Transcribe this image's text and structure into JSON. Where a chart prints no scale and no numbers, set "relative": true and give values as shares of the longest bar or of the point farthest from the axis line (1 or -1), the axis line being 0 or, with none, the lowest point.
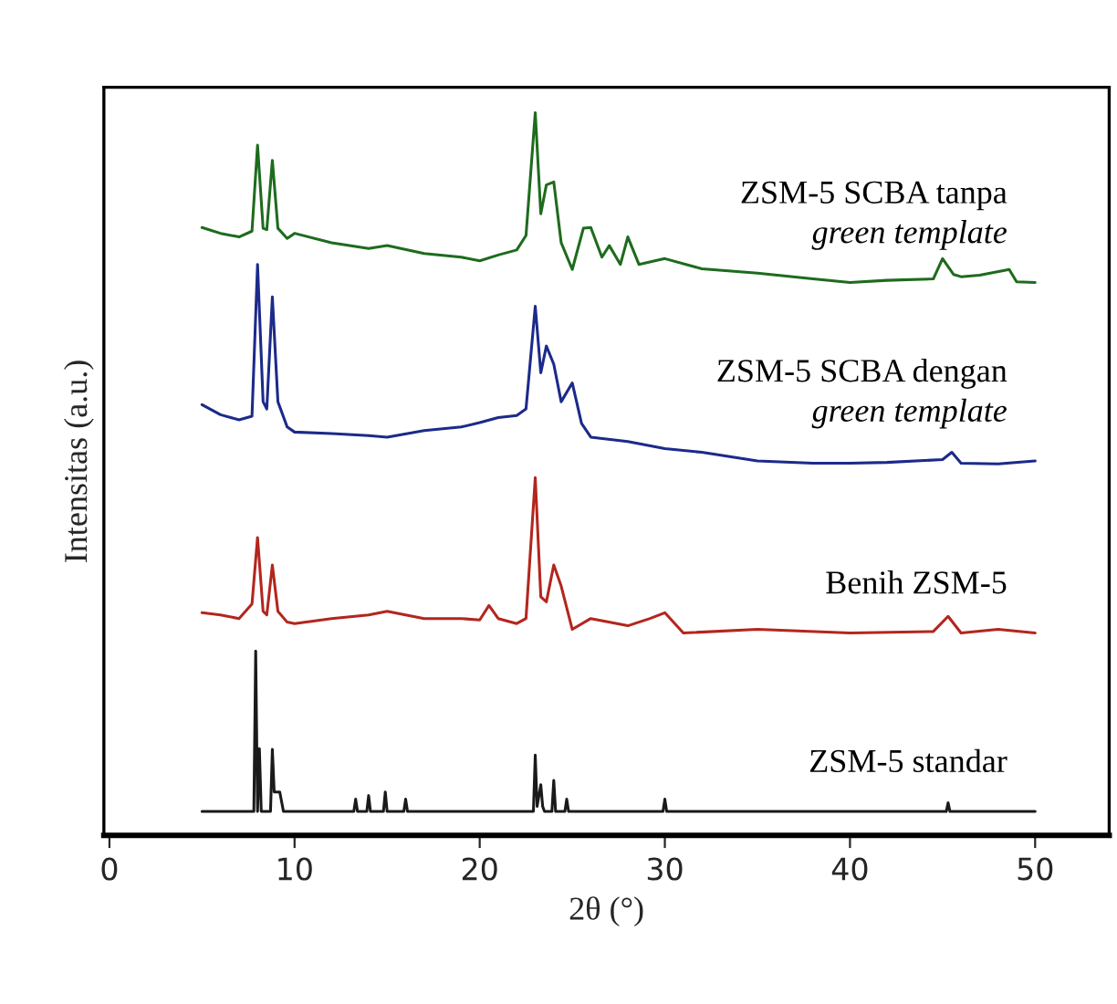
{
  "chart_data": {
    "type": "line",
    "relative": true,
    "xlabel": "2θ (°)",
    "ylabel": "Intensitas (a.u.)",
    "xlim": [
      -0.3,
      54
    ],
    "xticks": [
      0,
      10,
      20,
      30,
      40,
      50
    ],
    "grid": false,
    "legend": false,
    "marker": "none",
    "line_style": "solid",
    "series": [
      {
        "name": "ZSM-5 SCBA tanpa\ngreen template",
        "color": "#1e6b1e",
        "x": [
          5,
          6,
          7,
          7.7,
          8,
          8.3,
          8.5,
          8.8,
          9.1,
          9.6,
          10,
          12,
          14,
          15,
          17,
          19,
          20,
          21,
          22,
          22.5,
          23,
          23.3,
          23.6,
          24,
          24.4,
          25,
          25.6,
          26,
          26.6,
          27,
          27.6,
          28,
          28.6,
          30,
          32,
          35,
          38,
          40,
          42,
          44.5,
          45,
          45.6,
          46,
          47,
          48.6,
          49,
          50
        ],
        "values": [
          0.841,
          0.833,
          0.828,
          0.836,
          0.955,
          0.84,
          0.838,
          0.934,
          0.84,
          0.826,
          0.833,
          0.82,
          0.812,
          0.816,
          0.805,
          0.8,
          0.795,
          0.803,
          0.81,
          0.83,
          1.0,
          0.86,
          0.9,
          0.904,
          0.82,
          0.783,
          0.84,
          0.841,
          0.8,
          0.816,
          0.79,
          0.828,
          0.79,
          0.798,
          0.784,
          0.778,
          0.77,
          0.765,
          0.768,
          0.77,
          0.798,
          0.776,
          0.773,
          0.775,
          0.783,
          0.766,
          0.765
        ]
      },
      {
        "name": "ZSM-5 SCBA dengan\ngreen template",
        "color": "#1c2a8a",
        "x": [
          5,
          6,
          7,
          7.7,
          8,
          8.3,
          8.5,
          8.8,
          9.1,
          9.6,
          10,
          12,
          14,
          15,
          17,
          19,
          20,
          21,
          22,
          22.5,
          23,
          23.3,
          23.6,
          24,
          24.4,
          25,
          25.5,
          26,
          28,
          30,
          32,
          35,
          38,
          40,
          42,
          45,
          45.5,
          46,
          48,
          50
        ],
        "values": [
          0.596,
          0.582,
          0.575,
          0.58,
          0.79,
          0.6,
          0.59,
          0.745,
          0.6,
          0.565,
          0.558,
          0.556,
          0.553,
          0.551,
          0.56,
          0.565,
          0.571,
          0.578,
          0.581,
          0.59,
          0.732,
          0.64,
          0.677,
          0.652,
          0.6,
          0.626,
          0.57,
          0.551,
          0.545,
          0.535,
          0.53,
          0.518,
          0.515,
          0.515,
          0.516,
          0.52,
          0.53,
          0.515,
          0.514,
          0.518
        ]
      },
      {
        "name": "Benih ZSM-5",
        "color": "#b3261e",
        "x": [
          5,
          6,
          7,
          7.7,
          8,
          8.3,
          8.5,
          8.8,
          9.1,
          9.6,
          10,
          12,
          14,
          15,
          17,
          19,
          20,
          20.5,
          21,
          22,
          22.5,
          23,
          23.3,
          23.6,
          24,
          24.4,
          25,
          26,
          28,
          29.2,
          30,
          31,
          35,
          40,
          44.5,
          45.3,
          46,
          48,
          50
        ],
        "values": [
          0.308,
          0.305,
          0.3,
          0.32,
          0.412,
          0.31,
          0.305,
          0.374,
          0.31,
          0.295,
          0.293,
          0.3,
          0.305,
          0.31,
          0.3,
          0.3,
          0.298,
          0.318,
          0.3,
          0.293,
          0.3,
          0.495,
          0.33,
          0.323,
          0.374,
          0.345,
          0.285,
          0.3,
          0.29,
          0.3,
          0.308,
          0.28,
          0.285,
          0.28,
          0.282,
          0.303,
          0.28,
          0.285,
          0.28
        ]
      },
      {
        "name": "ZSM-5 standar",
        "color": "#1a1a1a",
        "x": [
          5,
          7.8,
          7.9,
          8,
          8.1,
          8.2,
          8.7,
          8.8,
          8.9,
          9.2,
          9.4,
          13.2,
          13.3,
          13.4,
          13.9,
          14,
          14.1,
          14.8,
          14.9,
          15,
          15.9,
          16,
          16.1,
          22.9,
          23,
          23.1,
          23.3,
          23.4,
          23.5,
          23.9,
          24,
          24.1,
          24.6,
          24.7,
          24.8,
          29.9,
          30,
          30.1,
          45.2,
          45.3,
          45.4,
          50
        ],
        "values": [
          0.033,
          0.033,
          0.255,
          0.033,
          0.12,
          0.033,
          0.033,
          0.119,
          0.06,
          0.06,
          0.033,
          0.033,
          0.05,
          0.033,
          0.033,
          0.055,
          0.033,
          0.033,
          0.06,
          0.033,
          0.033,
          0.05,
          0.033,
          0.033,
          0.111,
          0.04,
          0.07,
          0.04,
          0.033,
          0.033,
          0.076,
          0.033,
          0.033,
          0.05,
          0.033,
          0.033,
          0.05,
          0.033,
          0.033,
          0.045,
          0.033,
          0.033
        ]
      }
    ]
  }
}
